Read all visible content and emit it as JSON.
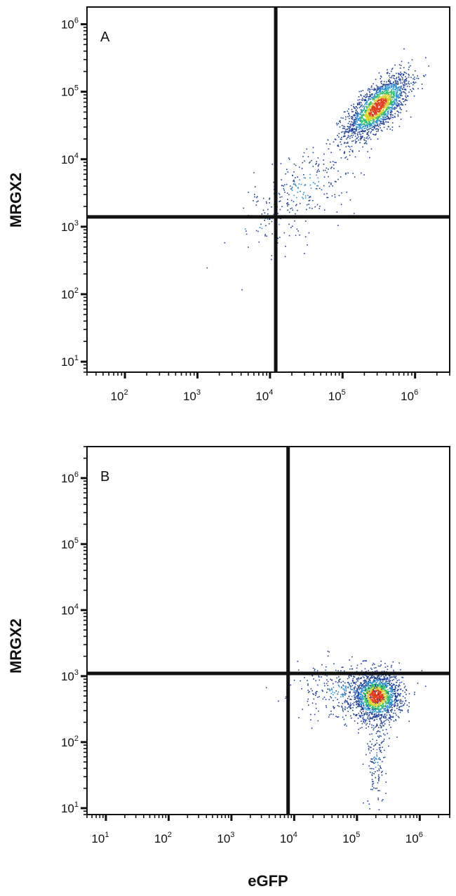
{
  "chart_data": [
    {
      "type": "scatter",
      "panel_label": "A",
      "xlabel": "",
      "ylabel": "MRGX2",
      "x_scale": "log",
      "y_scale": "log",
      "xlim": [
        30,
        3000000
      ],
      "ylim": [
        7,
        1800000
      ],
      "x_ticks": [
        {
          "base": "10",
          "exp": "2",
          "value": 100
        },
        {
          "base": "10",
          "exp": "3",
          "value": 1000
        },
        {
          "base": "10",
          "exp": "4",
          "value": 10000
        },
        {
          "base": "10",
          "exp": "5",
          "value": 100000
        },
        {
          "base": "10",
          "exp": "6",
          "value": 1000000
        }
      ],
      "y_ticks": [
        {
          "base": "10",
          "exp": "1",
          "value": 10
        },
        {
          "base": "10",
          "exp": "2",
          "value": 100
        },
        {
          "base": "10",
          "exp": "3",
          "value": 1000
        },
        {
          "base": "10",
          "exp": "4",
          "value": 10000
        },
        {
          "base": "10",
          "exp": "5",
          "value": 100000
        },
        {
          "base": "10",
          "exp": "6",
          "value": 1000000
        }
      ],
      "quadrant_gate": {
        "x": 12000,
        "y": 1400
      },
      "populations": [
        {
          "center_x": 300000,
          "center_y": 60000,
          "count": 1800
        },
        {
          "center_x": 30000,
          "center_y": 4000,
          "count": 260
        },
        {
          "center_x": 8000,
          "center_y": 1000,
          "count": 40
        }
      ],
      "grid": false,
      "legend": "none"
    },
    {
      "type": "scatter",
      "panel_label": "B",
      "xlabel": "eGFP",
      "ylabel": "MRGX2",
      "x_scale": "log",
      "y_scale": "log",
      "xlim": [
        5,
        3000000
      ],
      "ylim": [
        8,
        3000000
      ],
      "x_ticks": [
        {
          "base": "10",
          "exp": "1",
          "value": 10
        },
        {
          "base": "10",
          "exp": "2",
          "value": 100
        },
        {
          "base": "10",
          "exp": "3",
          "value": 1000
        },
        {
          "base": "10",
          "exp": "4",
          "value": 10000
        },
        {
          "base": "10",
          "exp": "5",
          "value": 100000
        },
        {
          "base": "10",
          "exp": "6",
          "value": 1000000
        }
      ],
      "y_ticks": [
        {
          "base": "10",
          "exp": "1",
          "value": 10
        },
        {
          "base": "10",
          "exp": "2",
          "value": 100
        },
        {
          "base": "10",
          "exp": "3",
          "value": 1000
        },
        {
          "base": "10",
          "exp": "4",
          "value": 10000
        },
        {
          "base": "10",
          "exp": "5",
          "value": 100000
        },
        {
          "base": "10",
          "exp": "6",
          "value": 1000000
        }
      ],
      "quadrant_gate": {
        "x": 8000,
        "y": 1100
      },
      "populations": [
        {
          "center_x": 200000,
          "center_y": 500,
          "count": 1700
        },
        {
          "center_x": 60000,
          "center_y": 600,
          "count": 300
        },
        {
          "center_x": 200000,
          "center_y": 60,
          "count": 150
        }
      ],
      "grid": false,
      "legend": "none"
    }
  ],
  "colors": {
    "frame": "#111111",
    "gate": "#111111",
    "density_low": "#1f3f9a",
    "density_mid_low": "#2a8fd4",
    "density_mid": "#2fbf6a",
    "density_mid_high": "#d8d22a",
    "density_high": "#e23a1a"
  }
}
